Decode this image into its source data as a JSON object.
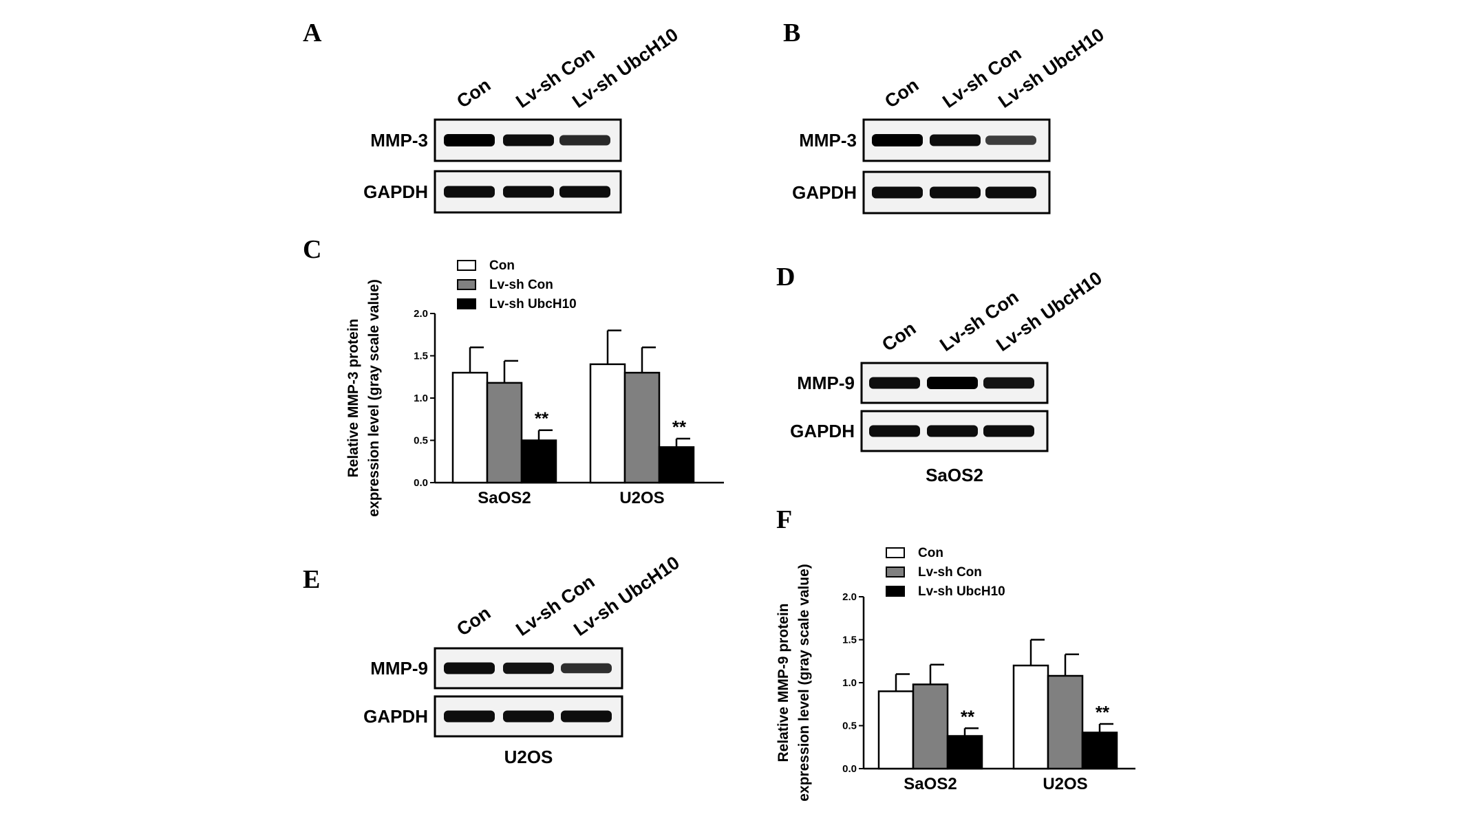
{
  "panels": {
    "A": {
      "letter": "A"
    },
    "B": {
      "letter": "B"
    },
    "C": {
      "letter": "C"
    },
    "D": {
      "letter": "D"
    },
    "E": {
      "letter": "E"
    },
    "F": {
      "letter": "F"
    }
  },
  "lanes": [
    "Con",
    "Lv-sh Con",
    "Lv-sh UbcH10"
  ],
  "blots": [
    {
      "id": "A",
      "rows": [
        "MMP-3",
        "GAPDH"
      ],
      "intensity": [
        [
          1.0,
          0.9,
          0.7
        ],
        [
          0.9,
          0.9,
          0.9
        ]
      ],
      "caption": ""
    },
    {
      "id": "B",
      "rows": [
        "MMP-3",
        "GAPDH"
      ],
      "intensity": [
        [
          1.0,
          0.9,
          0.55
        ],
        [
          0.9,
          0.9,
          0.9
        ]
      ],
      "caption": ""
    },
    {
      "id": "D",
      "rows": [
        "MMP-9",
        "GAPDH"
      ],
      "intensity": [
        [
          0.9,
          1.0,
          0.85
        ],
        [
          0.9,
          0.9,
          0.9
        ]
      ],
      "caption": "SaOS2"
    },
    {
      "id": "E",
      "rows": [
        "MMP-9",
        "GAPDH"
      ],
      "intensity": [
        [
          0.9,
          0.85,
          0.65
        ],
        [
          0.9,
          0.9,
          0.9
        ]
      ],
      "caption": "U2OS"
    }
  ],
  "chart_data": [
    {
      "id": "C",
      "type": "bar",
      "categories": [
        "SaOS2",
        "U2OS"
      ],
      "series": [
        {
          "name": "Con",
          "values": [
            1.3,
            1.4
          ],
          "errors": [
            0.3,
            0.4
          ],
          "color": "#ffffff"
        },
        {
          "name": "Lv-sh Con",
          "values": [
            1.18,
            1.3
          ],
          "errors": [
            0.26,
            0.3
          ],
          "color": "#808080"
        },
        {
          "name": "Lv-sh UbcH10",
          "values": [
            0.5,
            0.42
          ],
          "errors": [
            0.12,
            0.1
          ],
          "color": "#000000"
        }
      ],
      "significance": [
        "**",
        "**"
      ],
      "ylabel": [
        "Relative MMP-3 protein",
        "expression level (gray scale value)"
      ],
      "ylim": [
        0,
        2.0
      ],
      "yticks": [
        "0.0",
        "0.5",
        "1.0",
        "1.5",
        "2.0"
      ],
      "legend": "top-left"
    },
    {
      "id": "F",
      "type": "bar",
      "categories": [
        "SaOS2",
        "U2OS"
      ],
      "series": [
        {
          "name": "Con",
          "values": [
            0.9,
            1.2
          ],
          "errors": [
            0.2,
            0.3
          ],
          "color": "#ffffff"
        },
        {
          "name": "Lv-sh Con",
          "values": [
            0.98,
            1.08
          ],
          "errors": [
            0.23,
            0.25
          ],
          "color": "#808080"
        },
        {
          "name": "Lv-sh UbcH10",
          "values": [
            0.38,
            0.42
          ],
          "errors": [
            0.09,
            0.1
          ],
          "color": "#000000"
        }
      ],
      "significance": [
        "**",
        "**"
      ],
      "ylabel": [
        "Relative MMP-9 protein",
        "expression level (gray scale value)"
      ],
      "ylim": [
        0,
        2.0
      ],
      "yticks": [
        "0.0",
        "0.5",
        "1.0",
        "1.5",
        "2.0"
      ],
      "legend": "top-left"
    }
  ]
}
